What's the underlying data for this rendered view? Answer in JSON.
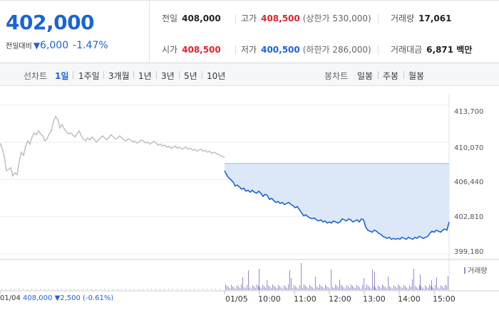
{
  "summary": {
    "current_price": "402,000",
    "change_label": "전일대비",
    "change_icon": "down-triangle-icon",
    "change_arrow": "▼",
    "change_value": "6,000",
    "change_rate": "-1.47%"
  },
  "stats": {
    "prev_close": {
      "label": "전일",
      "value": "408,000"
    },
    "open": {
      "label": "시가",
      "value": "408,500"
    },
    "high": {
      "label": "고가",
      "value": "408,500",
      "limit_text": "(상한가 530,000)"
    },
    "low": {
      "label": "저가",
      "value": "400,500",
      "limit_text": "(하한가 286,000)"
    },
    "volume": {
      "label": "거래량",
      "value": "17,061"
    },
    "amount": {
      "label": "거래대금",
      "value": "6,871 백만"
    }
  },
  "toolbar": {
    "line_chart_label": "선차트",
    "periods": [
      "1일",
      "1주일",
      "3개월",
      "1년",
      "3년",
      "5년",
      "10년"
    ],
    "active_period": "1일",
    "candle_chart_label": "봉차트",
    "candles": [
      "일봉",
      "주봉",
      "월봉"
    ]
  },
  "chart_footer": {
    "prev_day": "01/04",
    "prev_close": "408,000",
    "prev_change": "▼2,500 (-0.61%)",
    "volume_legend": "거래량"
  },
  "colors": {
    "rise": "#e0242c",
    "fall": "#1b63d6",
    "prev_day_line": "#bbbbbb",
    "today_fill": "#dce8f8",
    "volume_bar": "#9b88c9"
  },
  "chart_data": {
    "type": "line",
    "y_ticks": [
      413700,
      410070,
      406440,
      402810,
      399180
    ],
    "ylim": [
      398700,
      414800
    ],
    "x_ticks": [
      "01/05",
      "10:00",
      "11:00",
      "12:00",
      "13:00",
      "14:00",
      "15:00"
    ],
    "reference_price": 408000,
    "series": [
      {
        "points": [
          [
            0,
            410000
          ],
          [
            3,
            409500
          ],
          [
            6,
            408700
          ],
          [
            9,
            407300
          ],
          [
            12,
            407400
          ],
          [
            15,
            407600
          ],
          [
            18,
            406800
          ],
          [
            21,
            407100
          ],
          [
            24,
            406900
          ],
          [
            27,
            408200
          ],
          [
            30,
            409100
          ],
          [
            33,
            408800
          ],
          [
            36,
            409700
          ],
          [
            39,
            410200
          ],
          [
            42,
            409900
          ],
          [
            45,
            410600
          ],
          [
            48,
            411000
          ],
          [
            51,
            410800
          ],
          [
            54,
            411200
          ],
          [
            57,
            410900
          ],
          [
            60,
            410700
          ],
          [
            63,
            410200
          ],
          [
            66,
            410400
          ],
          [
            69,
            410900
          ],
          [
            72,
            411200
          ],
          [
            75,
            412100
          ],
          [
            78,
            412600
          ],
          [
            81,
            412300
          ],
          [
            84,
            411500
          ],
          [
            87,
            411800
          ],
          [
            90,
            411400
          ],
          [
            93,
            411100
          ],
          [
            96,
            410900
          ],
          [
            99,
            411000
          ],
          [
            102,
            410800
          ],
          [
            105,
            410600
          ],
          [
            108,
            410900
          ],
          [
            111,
            411200
          ],
          [
            114,
            410700
          ],
          [
            117,
            410400
          ],
          [
            120,
            410200
          ],
          [
            123,
            410500
          ],
          [
            126,
            410300
          ],
          [
            129,
            410600
          ],
          [
            132,
            410400
          ],
          [
            135,
            410100
          ],
          [
            138,
            410300
          ],
          [
            141,
            410500
          ],
          [
            144,
            410700
          ],
          [
            147,
            410500
          ],
          [
            150,
            410300
          ],
          [
            153,
            410600
          ],
          [
            156,
            410800
          ],
          [
            159,
            410600
          ],
          [
            162,
            410400
          ],
          [
            165,
            410500
          ],
          [
            168,
            410700
          ],
          [
            171,
            410500
          ],
          [
            174,
            410300
          ],
          [
            177,
            410200
          ],
          [
            180,
            410400
          ],
          [
            183,
            410300
          ],
          [
            186,
            410100
          ],
          [
            189,
            410200
          ],
          [
            192,
            410000
          ],
          [
            195,
            410100
          ],
          [
            198,
            410300
          ],
          [
            201,
            410200
          ],
          [
            204,
            410000
          ],
          [
            207,
            410100
          ],
          [
            210,
            409900
          ],
          [
            213,
            410000
          ],
          [
            216,
            410200
          ],
          [
            219,
            410000
          ],
          [
            222,
            409800
          ],
          [
            225,
            409900
          ],
          [
            228,
            409700
          ],
          [
            231,
            409800
          ],
          [
            234,
            409600
          ],
          [
            237,
            409700
          ],
          [
            240,
            409500
          ],
          [
            243,
            409600
          ],
          [
            246,
            409700
          ],
          [
            249,
            409500
          ],
          [
            252,
            409600
          ],
          [
            255,
            409400
          ],
          [
            258,
            409500
          ],
          [
            261,
            409600
          ],
          [
            264,
            409400
          ],
          [
            267,
            409500
          ],
          [
            270,
            409300
          ],
          [
            273,
            409400
          ],
          [
            276,
            409200
          ],
          [
            279,
            409300
          ],
          [
            282,
            409400
          ],
          [
            285,
            409200
          ],
          [
            288,
            409300
          ],
          [
            291,
            409100
          ],
          [
            294,
            409200
          ],
          [
            297,
            409000
          ],
          [
            300,
            409100
          ],
          [
            303,
            409000
          ],
          [
            306,
            408900
          ],
          [
            309,
            408800
          ],
          [
            312,
            408700
          ],
          [
            315,
            408600
          ]
        ],
        "x_unit": "px",
        "note_label": "01/04"
      },
      {
        "points": [
          [
            315,
            407300
          ],
          [
            318,
            406900
          ],
          [
            321,
            406600
          ],
          [
            324,
            406400
          ],
          [
            327,
            406200
          ],
          [
            330,
            405800
          ],
          [
            333,
            405900
          ],
          [
            336,
            405700
          ],
          [
            339,
            405500
          ],
          [
            342,
            405600
          ],
          [
            345,
            405300
          ],
          [
            348,
            405400
          ],
          [
            351,
            405200
          ],
          [
            354,
            405400
          ],
          [
            357,
            405200
          ],
          [
            360,
            405100
          ],
          [
            363,
            405300
          ],
          [
            366,
            405100
          ],
          [
            369,
            404800
          ],
          [
            372,
            405000
          ],
          [
            375,
            404900
          ],
          [
            378,
            404500
          ],
          [
            381,
            404600
          ],
          [
            384,
            404400
          ],
          [
            387,
            404200
          ],
          [
            390,
            404300
          ],
          [
            393,
            404100
          ],
          [
            396,
            404200
          ],
          [
            399,
            404000
          ],
          [
            402,
            404100
          ],
          [
            405,
            404200
          ],
          [
            408,
            404000
          ],
          [
            411,
            403900
          ],
          [
            414,
            403700
          ],
          [
            417,
            403800
          ],
          [
            420,
            403500
          ],
          [
            423,
            403200
          ],
          [
            426,
            402900
          ],
          [
            429,
            403000
          ],
          [
            432,
            402800
          ],
          [
            435,
            402700
          ],
          [
            438,
            402600
          ],
          [
            441,
            402700
          ],
          [
            444,
            402500
          ],
          [
            447,
            402400
          ],
          [
            450,
            402500
          ],
          [
            453,
            402300
          ],
          [
            456,
            402400
          ],
          [
            459,
            402200
          ],
          [
            462,
            402300
          ],
          [
            465,
            402200
          ],
          [
            468,
            402400
          ],
          [
            471,
            402300
          ],
          [
            474,
            402200
          ],
          [
            477,
            402300
          ],
          [
            480,
            402600
          ],
          [
            483,
            402500
          ],
          [
            486,
            402400
          ],
          [
            489,
            402600
          ],
          [
            492,
            402500
          ],
          [
            495,
            402300
          ],
          [
            498,
            402400
          ],
          [
            501,
            402500
          ],
          [
            504,
            402300
          ],
          [
            507,
            402600
          ],
          [
            510,
            402500
          ],
          [
            513,
            401800
          ],
          [
            516,
            401500
          ],
          [
            519,
            401400
          ],
          [
            522,
            401300
          ],
          [
            525,
            401500
          ],
          [
            528,
            401400
          ],
          [
            531,
            401200
          ],
          [
            534,
            401100
          ],
          [
            537,
            400900
          ],
          [
            540,
            400800
          ],
          [
            543,
            400700
          ],
          [
            546,
            400800
          ],
          [
            549,
            400600
          ],
          [
            552,
            400700
          ],
          [
            555,
            400600
          ],
          [
            558,
            400700
          ],
          [
            561,
            400600
          ],
          [
            564,
            400800
          ],
          [
            567,
            400700
          ],
          [
            570,
            400600
          ],
          [
            573,
            400800
          ],
          [
            576,
            400700
          ],
          [
            579,
            400600
          ],
          [
            582,
            400800
          ],
          [
            585,
            400700
          ],
          [
            588,
            400900
          ],
          [
            591,
            400800
          ],
          [
            594,
            400700
          ],
          [
            597,
            400800
          ],
          [
            600,
            400900
          ],
          [
            603,
            401200
          ],
          [
            606,
            401400
          ],
          [
            609,
            401300
          ],
          [
            612,
            401500
          ],
          [
            615,
            401400
          ],
          [
            618,
            401300
          ],
          [
            621,
            401500
          ],
          [
            624,
            401600
          ],
          [
            627,
            401500
          ],
          [
            630,
            402300
          ]
        ],
        "x_unit": "px",
        "note_label": "01/05"
      }
    ]
  }
}
